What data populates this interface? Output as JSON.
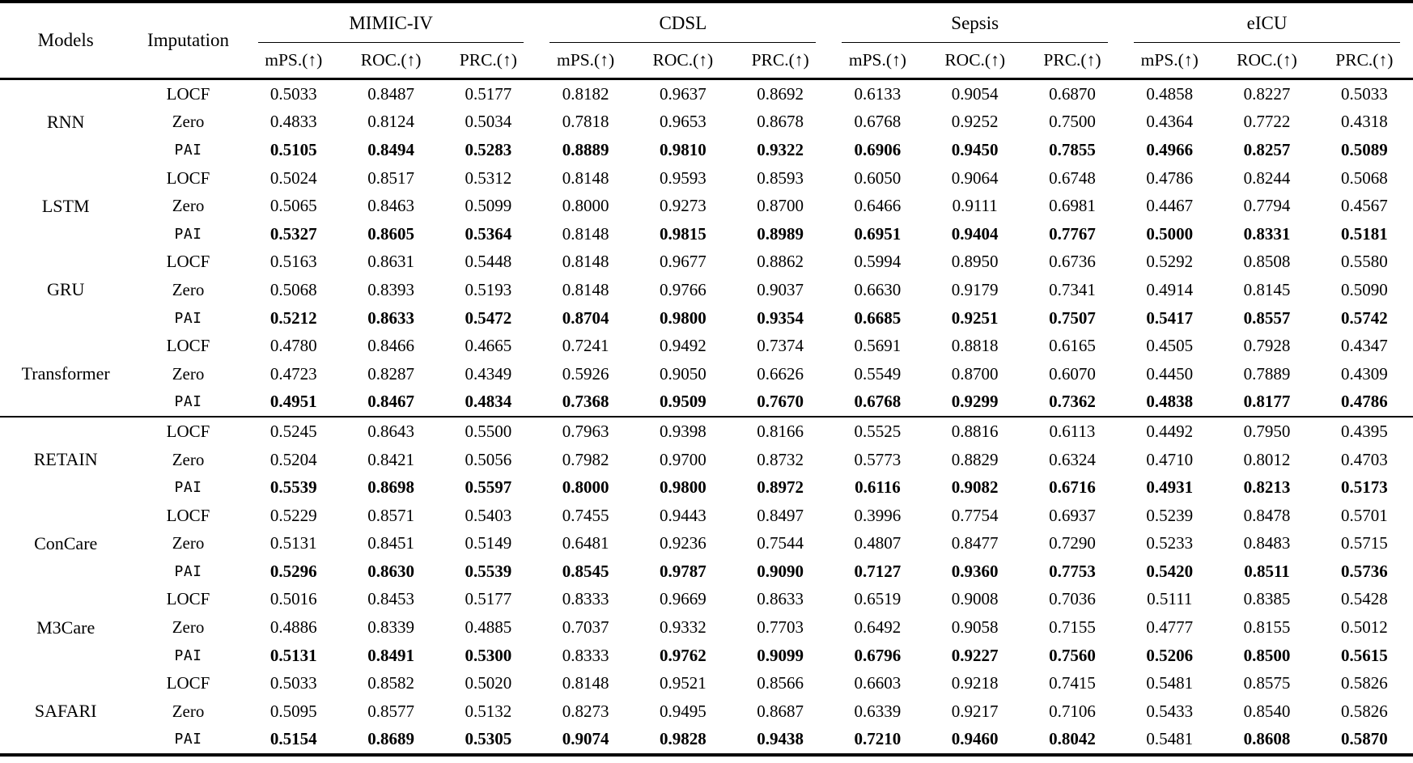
{
  "page": {
    "background": "#ffffff",
    "text_color": "#000000"
  },
  "table": {
    "header": {
      "models": "Models",
      "imputation": "Imputation"
    },
    "datasets": [
      "MIMIC-IV",
      "CDSL",
      "Sepsis",
      "eICU"
    ],
    "metrics": [
      "mPS.(↑)",
      "ROC.(↑)",
      "PRC.(↑)"
    ],
    "groups": [
      {
        "model": "RNN",
        "rows": [
          {
            "imputation": "LOCF",
            "values": [
              "0.5033",
              "0.8487",
              "0.5177",
              "0.8182",
              "0.9637",
              "0.8692",
              "0.6133",
              "0.9054",
              "0.6870",
              "0.4858",
              "0.8227",
              "0.5033"
            ],
            "bold": []
          },
          {
            "imputation": "Zero",
            "values": [
              "0.4833",
              "0.8124",
              "0.5034",
              "0.7818",
              "0.9653",
              "0.8678",
              "0.6768",
              "0.9252",
              "0.7500",
              "0.4364",
              "0.7722",
              "0.4318"
            ],
            "bold": []
          },
          {
            "imputation": "PAI",
            "values": [
              "0.5105",
              "0.8494",
              "0.5283",
              "0.8889",
              "0.9810",
              "0.9322",
              "0.6906",
              "0.9450",
              "0.7855",
              "0.4966",
              "0.8257",
              "0.5089"
            ],
            "bold": [
              0,
              1,
              2,
              3,
              4,
              5,
              6,
              7,
              8,
              9,
              10,
              11
            ]
          }
        ]
      },
      {
        "model": "LSTM",
        "rows": [
          {
            "imputation": "LOCF",
            "values": [
              "0.5024",
              "0.8517",
              "0.5312",
              "0.8148",
              "0.9593",
              "0.8593",
              "0.6050",
              "0.9064",
              "0.6748",
              "0.4786",
              "0.8244",
              "0.5068"
            ],
            "bold": []
          },
          {
            "imputation": "Zero",
            "values": [
              "0.5065",
              "0.8463",
              "0.5099",
              "0.8000",
              "0.9273",
              "0.8700",
              "0.6466",
              "0.9111",
              "0.6981",
              "0.4467",
              "0.7794",
              "0.4567"
            ],
            "bold": []
          },
          {
            "imputation": "PAI",
            "values": [
              "0.5327",
              "0.8605",
              "0.5364",
              "0.8148",
              "0.9815",
              "0.8989",
              "0.6951",
              "0.9404",
              "0.7767",
              "0.5000",
              "0.8331",
              "0.5181"
            ],
            "bold": [
              0,
              1,
              2,
              4,
              5,
              6,
              7,
              8,
              9,
              10,
              11
            ]
          }
        ]
      },
      {
        "model": "GRU",
        "rows": [
          {
            "imputation": "LOCF",
            "values": [
              "0.5163",
              "0.8631",
              "0.5448",
              "0.8148",
              "0.9677",
              "0.8862",
              "0.5994",
              "0.8950",
              "0.6736",
              "0.5292",
              "0.8508",
              "0.5580"
            ],
            "bold": []
          },
          {
            "imputation": "Zero",
            "values": [
              "0.5068",
              "0.8393",
              "0.5193",
              "0.8148",
              "0.9766",
              "0.9037",
              "0.6630",
              "0.9179",
              "0.7341",
              "0.4914",
              "0.8145",
              "0.5090"
            ],
            "bold": []
          },
          {
            "imputation": "PAI",
            "values": [
              "0.5212",
              "0.8633",
              "0.5472",
              "0.8704",
              "0.9800",
              "0.9354",
              "0.6685",
              "0.9251",
              "0.7507",
              "0.5417",
              "0.8557",
              "0.5742"
            ],
            "bold": [
              0,
              1,
              2,
              3,
              4,
              5,
              6,
              7,
              8,
              9,
              10,
              11
            ]
          }
        ]
      },
      {
        "model": "Transformer",
        "rows": [
          {
            "imputation": "LOCF",
            "values": [
              "0.4780",
              "0.8466",
              "0.4665",
              "0.7241",
              "0.9492",
              "0.7374",
              "0.5691",
              "0.8818",
              "0.6165",
              "0.4505",
              "0.7928",
              "0.4347"
            ],
            "bold": []
          },
          {
            "imputation": "Zero",
            "values": [
              "0.4723",
              "0.8287",
              "0.4349",
              "0.5926",
              "0.9050",
              "0.6626",
              "0.5549",
              "0.8700",
              "0.6070",
              "0.4450",
              "0.7889",
              "0.4309"
            ],
            "bold": []
          },
          {
            "imputation": "PAI",
            "values": [
              "0.4951",
              "0.8467",
              "0.4834",
              "0.7368",
              "0.9509",
              "0.7670",
              "0.6768",
              "0.9299",
              "0.7362",
              "0.4838",
              "0.8177",
              "0.4786"
            ],
            "bold": [
              0,
              1,
              2,
              3,
              4,
              5,
              6,
              7,
              8,
              9,
              10,
              11
            ]
          }
        ]
      },
      {
        "model": "RETAIN",
        "rows": [
          {
            "imputation": "LOCF",
            "values": [
              "0.5245",
              "0.8643",
              "0.5500",
              "0.7963",
              "0.9398",
              "0.8166",
              "0.5525",
              "0.8816",
              "0.6113",
              "0.4492",
              "0.7950",
              "0.4395"
            ],
            "bold": []
          },
          {
            "imputation": "Zero",
            "values": [
              "0.5204",
              "0.8421",
              "0.5056",
              "0.7982",
              "0.9700",
              "0.8732",
              "0.5773",
              "0.8829",
              "0.6324",
              "0.4710",
              "0.8012",
              "0.4703"
            ],
            "bold": []
          },
          {
            "imputation": "PAI",
            "values": [
              "0.5539",
              "0.8698",
              "0.5597",
              "0.8000",
              "0.9800",
              "0.8972",
              "0.6116",
              "0.9082",
              "0.6716",
              "0.4931",
              "0.8213",
              "0.5173"
            ],
            "bold": [
              0,
              1,
              2,
              3,
              4,
              5,
              6,
              7,
              8,
              9,
              10,
              11
            ]
          }
        ]
      },
      {
        "model": "ConCare",
        "rows": [
          {
            "imputation": "LOCF",
            "values": [
              "0.5229",
              "0.8571",
              "0.5403",
              "0.7455",
              "0.9443",
              "0.8497",
              "0.3996",
              "0.7754",
              "0.6937",
              "0.5239",
              "0.8478",
              "0.5701"
            ],
            "bold": []
          },
          {
            "imputation": "Zero",
            "values": [
              "0.5131",
              "0.8451",
              "0.5149",
              "0.6481",
              "0.9236",
              "0.7544",
              "0.4807",
              "0.8477",
              "0.7290",
              "0.5233",
              "0.8483",
              "0.5715"
            ],
            "bold": []
          },
          {
            "imputation": "PAI",
            "values": [
              "0.5296",
              "0.8630",
              "0.5539",
              "0.8545",
              "0.9787",
              "0.9090",
              "0.7127",
              "0.9360",
              "0.7753",
              "0.5420",
              "0.8511",
              "0.5736"
            ],
            "bold": [
              0,
              1,
              2,
              3,
              4,
              5,
              6,
              7,
              8,
              9,
              10,
              11
            ]
          }
        ]
      },
      {
        "model": "M3Care",
        "rows": [
          {
            "imputation": "LOCF",
            "values": [
              "0.5016",
              "0.8453",
              "0.5177",
              "0.8333",
              "0.9669",
              "0.8633",
              "0.6519",
              "0.9008",
              "0.7036",
              "0.5111",
              "0.8385",
              "0.5428"
            ],
            "bold": []
          },
          {
            "imputation": "Zero",
            "values": [
              "0.4886",
              "0.8339",
              "0.4885",
              "0.7037",
              "0.9332",
              "0.7703",
              "0.6492",
              "0.9058",
              "0.7155",
              "0.4777",
              "0.8155",
              "0.5012"
            ],
            "bold": []
          },
          {
            "imputation": "PAI",
            "values": [
              "0.5131",
              "0.8491",
              "0.5300",
              "0.8333",
              "0.9762",
              "0.9099",
              "0.6796",
              "0.9227",
              "0.7560",
              "0.5206",
              "0.8500",
              "0.5615"
            ],
            "bold": [
              0,
              1,
              2,
              4,
              5,
              6,
              7,
              8,
              9,
              10,
              11
            ]
          }
        ]
      },
      {
        "model": "SAFARI",
        "rows": [
          {
            "imputation": "LOCF",
            "values": [
              "0.5033",
              "0.8582",
              "0.5020",
              "0.8148",
              "0.9521",
              "0.8566",
              "0.6603",
              "0.9218",
              "0.7415",
              "0.5481",
              "0.8575",
              "0.5826"
            ],
            "bold": []
          },
          {
            "imputation": "Zero",
            "values": [
              "0.5095",
              "0.8577",
              "0.5132",
              "0.8273",
              "0.9495",
              "0.8687",
              "0.6339",
              "0.9217",
              "0.7106",
              "0.5433",
              "0.8540",
              "0.5826"
            ],
            "bold": []
          },
          {
            "imputation": "PAI",
            "values": [
              "0.5154",
              "0.8689",
              "0.5305",
              "0.9074",
              "0.9828",
              "0.9438",
              "0.7210",
              "0.9460",
              "0.8042",
              "0.5481",
              "0.8608",
              "0.5870"
            ],
            "bold": [
              0,
              1,
              2,
              3,
              4,
              5,
              6,
              7,
              8,
              10,
              11
            ]
          }
        ]
      }
    ],
    "section_break_after_group_index": 3
  }
}
